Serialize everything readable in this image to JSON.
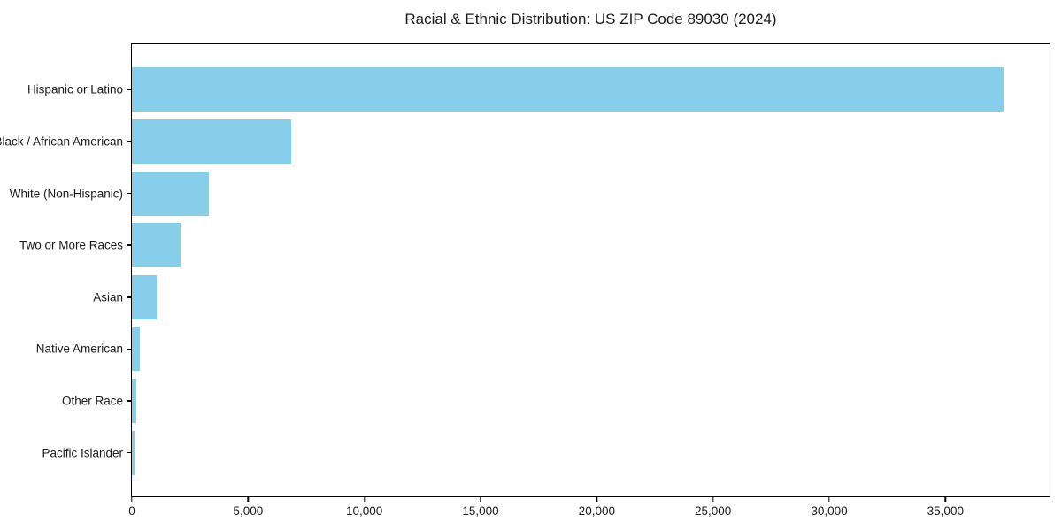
{
  "title": "Racial & Ethnic Distribution: US ZIP Code 89030 (2024)",
  "chart_data": {
    "type": "bar",
    "orientation": "horizontal",
    "title": "Racial & Ethnic Distribution: US ZIP Code 89030 (2024)",
    "xlabel": "",
    "ylabel": "",
    "categories": [
      "Hispanic or Latino",
      "Black / African American",
      "White (Non-Hispanic)",
      "Two or More Races",
      "Asian",
      "Native American",
      "Other Race",
      "Pacific Islander"
    ],
    "values": [
      37500,
      6850,
      3300,
      2100,
      1050,
      350,
      200,
      110
    ],
    "xlim": [
      0,
      39480
    ],
    "x_ticks": [
      0,
      5000,
      10000,
      15000,
      20000,
      25000,
      30000,
      35000
    ],
    "x_tick_labels": [
      "0",
      "5,000",
      "10,000",
      "15,000",
      "20,000",
      "25,000",
      "30,000",
      "35,000"
    ],
    "bar_color": "#87CEEB",
    "axis_color": "#000000",
    "text_color": "#1a1a1a",
    "grid": false,
    "legend": null
  }
}
